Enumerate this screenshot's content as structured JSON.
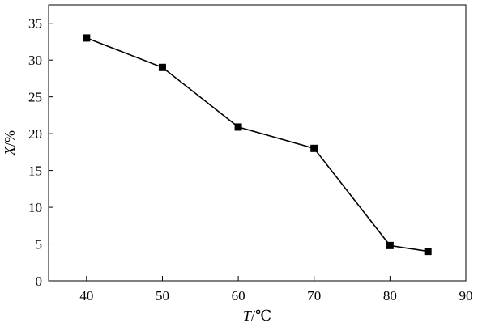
{
  "chart_data": {
    "type": "line",
    "x": [
      40,
      50,
      60,
      70,
      80,
      85
    ],
    "series": [
      {
        "values": [
          33,
          29,
          20.9,
          18,
          4.8,
          4
        ]
      }
    ],
    "xlabel": {
      "var": "T",
      "unit": "/℃"
    },
    "ylabel": {
      "var": "X",
      "unit": "/%"
    },
    "xlim": [
      35,
      90
    ],
    "ylim": [
      0,
      37.5
    ],
    "xticks": [
      40,
      50,
      60,
      70,
      80,
      90
    ],
    "yticks": [
      0,
      5,
      10,
      15,
      20,
      25,
      30,
      35
    ],
    "grid": false,
    "legend": "none",
    "marker": "square",
    "colors": {
      "line": "#000000",
      "marker": "#000000",
      "axis": "#000000"
    }
  }
}
